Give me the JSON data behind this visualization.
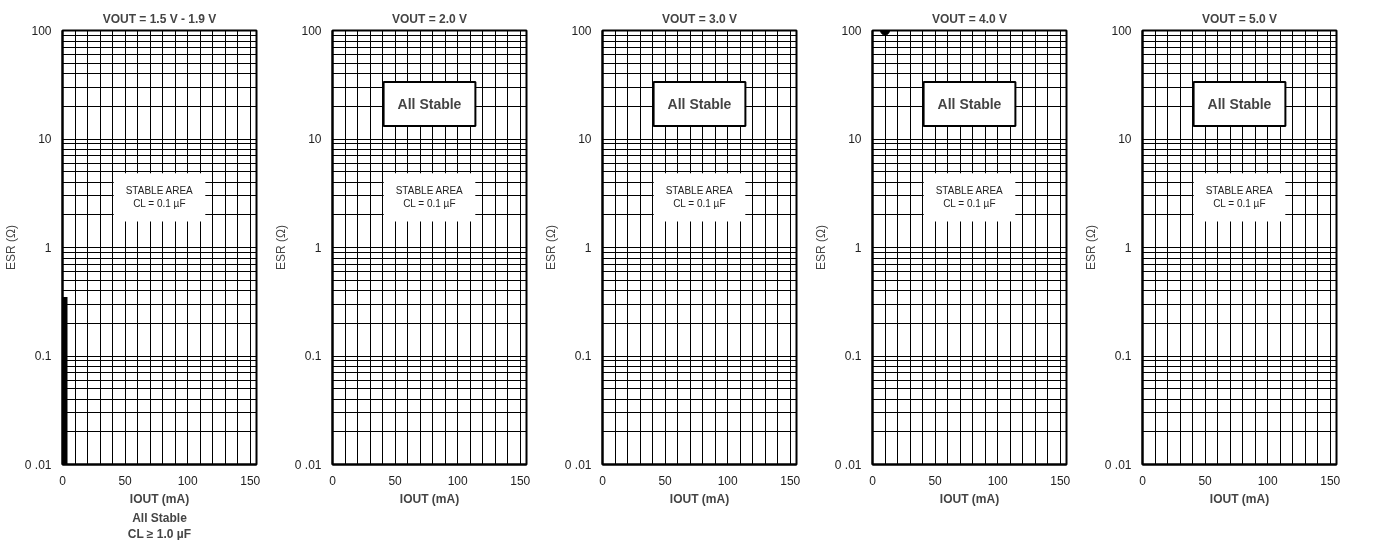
{
  "chart_data": [
    {
      "type": "area",
      "title": "VOUT = 1.5 V - 1.9 V",
      "xlabel": "IOUT (mA)",
      "ylabel": "ESR (Ω)",
      "log": "y",
      "grid": true,
      "xlim": [
        0,
        155
      ],
      "xticks": [
        0,
        {
          "value": 10,
          "label": null
        },
        {
          "value": 20,
          "label": null
        },
        {
          "value": 30,
          "label": null
        },
        {
          "value": 40,
          "label": null
        },
        50,
        {
          "value": 60,
          "label": null
        },
        {
          "value": 70,
          "label": null
        },
        {
          "value": 80,
          "label": null
        },
        {
          "value": 90,
          "label": null
        },
        100,
        {
          "value": 110,
          "label": null
        },
        {
          "value": 120,
          "label": null
        },
        {
          "value": 130,
          "label": null
        },
        {
          "value": 140,
          "label": null
        },
        150
      ],
      "ylim": [
        0.01,
        100
      ],
      "yticks": [
        {
          "value": 0.01,
          "label": "0 .01"
        },
        {
          "value": 0.02,
          "label": null
        },
        {
          "value": 0.03,
          "label": null
        },
        {
          "value": 0.04,
          "label": null
        },
        {
          "value": 0.05,
          "label": null
        },
        {
          "value": 0.06,
          "label": null
        },
        {
          "value": 0.07,
          "label": null
        },
        {
          "value": 0.08,
          "label": null
        },
        {
          "value": 0.09,
          "label": null
        },
        0.1,
        {
          "value": 0.2,
          "label": null
        },
        {
          "value": 0.3,
          "label": null
        },
        {
          "value": 0.4,
          "label": null
        },
        {
          "value": 0.5,
          "label": null
        },
        {
          "value": 0.6,
          "label": null
        },
        {
          "value": 0.7,
          "label": null
        },
        {
          "value": 0.8,
          "label": null
        },
        {
          "value": 0.9,
          "label": null
        },
        1,
        {
          "value": 2,
          "label": null
        },
        {
          "value": 3,
          "label": null
        },
        {
          "value": 4,
          "label": null
        },
        {
          "value": 5,
          "label": null
        },
        {
          "value": 6,
          "label": null
        },
        {
          "value": 7,
          "label": null
        },
        {
          "value": 8,
          "label": null
        },
        {
          "value": 9,
          "label": null
        },
        10,
        {
          "value": 20,
          "label": null
        },
        {
          "value": 30,
          "label": null
        },
        {
          "value": 40,
          "label": null
        },
        {
          "value": 50,
          "label": null
        },
        {
          "value": 60,
          "label": null
        },
        {
          "value": 70,
          "label": null
        },
        {
          "value": 80,
          "label": null
        },
        {
          "value": 90,
          "label": null
        },
        100
      ],
      "series": [
        {
          "color": "#000000",
          "x": [
            0,
            4
          ],
          "values": [
            0.35,
            0.35
          ]
        }
      ],
      "annotations": [
        "STABLE AREA\nCL = 0.1 µF",
        "All Stable\nCL ≥ 1.0 µF"
      ]
    },
    {
      "type": "line",
      "title": "VOUT = 2.0 V",
      "xlabel": "IOUT (mA)",
      "ylabel": "ESR (Ω)",
      "log": "y",
      "grid": true,
      "xlim": [
        0,
        155
      ],
      "xticks": [
        0,
        {
          "value": 10,
          "label": null
        },
        {
          "value": 20,
          "label": null
        },
        {
          "value": 30,
          "label": null
        },
        {
          "value": 40,
          "label": null
        },
        50,
        {
          "value": 60,
          "label": null
        },
        {
          "value": 70,
          "label": null
        },
        {
          "value": 80,
          "label": null
        },
        {
          "value": 90,
          "label": null
        },
        100,
        {
          "value": 110,
          "label": null
        },
        {
          "value": 120,
          "label": null
        },
        {
          "value": 130,
          "label": null
        },
        {
          "value": 140,
          "label": null
        },
        150
      ],
      "ylim": [
        0.01,
        100
      ],
      "yticks": [
        {
          "value": 0.01,
          "label": "0 .01"
        },
        {
          "value": 0.02,
          "label": null
        },
        {
          "value": 0.03,
          "label": null
        },
        {
          "value": 0.04,
          "label": null
        },
        {
          "value": 0.05,
          "label": null
        },
        {
          "value": 0.06,
          "label": null
        },
        {
          "value": 0.07,
          "label": null
        },
        {
          "value": 0.08,
          "label": null
        },
        {
          "value": 0.09,
          "label": null
        },
        0.1,
        {
          "value": 0.2,
          "label": null
        },
        {
          "value": 0.3,
          "label": null
        },
        {
          "value": 0.4,
          "label": null
        },
        {
          "value": 0.5,
          "label": null
        },
        {
          "value": 0.6,
          "label": null
        },
        {
          "value": 0.7,
          "label": null
        },
        {
          "value": 0.8,
          "label": null
        },
        {
          "value": 0.9,
          "label": null
        },
        1,
        {
          "value": 2,
          "label": null
        },
        {
          "value": 3,
          "label": null
        },
        {
          "value": 4,
          "label": null
        },
        {
          "value": 5,
          "label": null
        },
        {
          "value": 6,
          "label": null
        },
        {
          "value": 7,
          "label": null
        },
        {
          "value": 8,
          "label": null
        },
        {
          "value": 9,
          "label": null
        },
        10,
        {
          "value": 20,
          "label": null
        },
        {
          "value": 30,
          "label": null
        },
        {
          "value": 40,
          "label": null
        },
        {
          "value": 50,
          "label": null
        },
        {
          "value": 60,
          "label": null
        },
        {
          "value": 70,
          "label": null
        },
        {
          "value": 80,
          "label": null
        },
        {
          "value": 90,
          "label": null
        },
        100
      ],
      "annotations": [
        "STABLE AREA\nCL = 0.1 µF",
        "All Stable"
      ]
    },
    {
      "type": "line",
      "title": "VOUT = 3.0 V",
      "xlabel": "IOUT (mA)",
      "ylabel": "ESR (Ω)",
      "log": "y",
      "grid": true,
      "xlim": [
        0,
        155
      ],
      "xticks": [
        0,
        {
          "value": 10,
          "label": null
        },
        {
          "value": 20,
          "label": null
        },
        {
          "value": 30,
          "label": null
        },
        {
          "value": 40,
          "label": null
        },
        50,
        {
          "value": 60,
          "label": null
        },
        {
          "value": 70,
          "label": null
        },
        {
          "value": 80,
          "label": null
        },
        {
          "value": 90,
          "label": null
        },
        100,
        {
          "value": 110,
          "label": null
        },
        {
          "value": 120,
          "label": null
        },
        {
          "value": 130,
          "label": null
        },
        {
          "value": 140,
          "label": null
        },
        150
      ],
      "ylim": [
        0.01,
        100
      ],
      "yticks": [
        {
          "value": 0.01,
          "label": "0 .01"
        },
        {
          "value": 0.02,
          "label": null
        },
        {
          "value": 0.03,
          "label": null
        },
        {
          "value": 0.04,
          "label": null
        },
        {
          "value": 0.05,
          "label": null
        },
        {
          "value": 0.06,
          "label": null
        },
        {
          "value": 0.07,
          "label": null
        },
        {
          "value": 0.08,
          "label": null
        },
        {
          "value": 0.09,
          "label": null
        },
        0.1,
        {
          "value": 0.2,
          "label": null
        },
        {
          "value": 0.3,
          "label": null
        },
        {
          "value": 0.4,
          "label": null
        },
        {
          "value": 0.5,
          "label": null
        },
        {
          "value": 0.6,
          "label": null
        },
        {
          "value": 0.7,
          "label": null
        },
        {
          "value": 0.8,
          "label": null
        },
        {
          "value": 0.9,
          "label": null
        },
        1,
        {
          "value": 2,
          "label": null
        },
        {
          "value": 3,
          "label": null
        },
        {
          "value": 4,
          "label": null
        },
        {
          "value": 5,
          "label": null
        },
        {
          "value": 6,
          "label": null
        },
        {
          "value": 7,
          "label": null
        },
        {
          "value": 8,
          "label": null
        },
        {
          "value": 9,
          "label": null
        },
        10,
        {
          "value": 20,
          "label": null
        },
        {
          "value": 30,
          "label": null
        },
        {
          "value": 40,
          "label": null
        },
        {
          "value": 50,
          "label": null
        },
        {
          "value": 60,
          "label": null
        },
        {
          "value": 70,
          "label": null
        },
        {
          "value": 80,
          "label": null
        },
        {
          "value": 90,
          "label": null
        },
        100
      ],
      "annotations": [
        "STABLE AREA\nCL = 0.1 µF",
        "All Stable"
      ]
    },
    {
      "type": "scatter",
      "title": "VOUT = 4.0 V",
      "xlabel": "IOUT (mA)",
      "ylabel": "ESR (Ω)",
      "log": "y",
      "grid": true,
      "marker": "circle",
      "xlim": [
        0,
        155
      ],
      "xticks": [
        0,
        {
          "value": 10,
          "label": null
        },
        {
          "value": 20,
          "label": null
        },
        {
          "value": 30,
          "label": null
        },
        {
          "value": 40,
          "label": null
        },
        50,
        {
          "value": 60,
          "label": null
        },
        {
          "value": 70,
          "label": null
        },
        {
          "value": 80,
          "label": null
        },
        {
          "value": 90,
          "label": null
        },
        100,
        {
          "value": 110,
          "label": null
        },
        {
          "value": 120,
          "label": null
        },
        {
          "value": 130,
          "label": null
        },
        {
          "value": 140,
          "label": null
        },
        150
      ],
      "ylim": [
        0.01,
        100
      ],
      "yticks": [
        {
          "value": 0.01,
          "label": "0 .01"
        },
        {
          "value": 0.02,
          "label": null
        },
        {
          "value": 0.03,
          "label": null
        },
        {
          "value": 0.04,
          "label": null
        },
        {
          "value": 0.05,
          "label": null
        },
        {
          "value": 0.06,
          "label": null
        },
        {
          "value": 0.07,
          "label": null
        },
        {
          "value": 0.08,
          "label": null
        },
        {
          "value": 0.09,
          "label": null
        },
        0.1,
        {
          "value": 0.2,
          "label": null
        },
        {
          "value": 0.3,
          "label": null
        },
        {
          "value": 0.4,
          "label": null
        },
        {
          "value": 0.5,
          "label": null
        },
        {
          "value": 0.6,
          "label": null
        },
        {
          "value": 0.7,
          "label": null
        },
        {
          "value": 0.8,
          "label": null
        },
        {
          "value": 0.9,
          "label": null
        },
        1,
        {
          "value": 2,
          "label": null
        },
        {
          "value": 3,
          "label": null
        },
        {
          "value": 4,
          "label": null
        },
        {
          "value": 5,
          "label": null
        },
        {
          "value": 6,
          "label": null
        },
        {
          "value": 7,
          "label": null
        },
        {
          "value": 8,
          "label": null
        },
        {
          "value": 9,
          "label": null
        },
        10,
        {
          "value": 20,
          "label": null
        },
        {
          "value": 30,
          "label": null
        },
        {
          "value": 40,
          "label": null
        },
        {
          "value": 50,
          "label": null
        },
        {
          "value": 60,
          "label": null
        },
        {
          "value": 70,
          "label": null
        },
        {
          "value": 80,
          "label": null
        },
        {
          "value": 90,
          "label": null
        },
        100
      ],
      "series": [
        {
          "color": "#000000",
          "x": [
            10
          ],
          "values": [
            100
          ]
        }
      ],
      "annotations": [
        "STABLE AREA\nCL = 0.1 µF",
        "All Stable"
      ]
    },
    {
      "type": "line",
      "title": "VOUT = 5.0 V",
      "xlabel": "IOUT (mA)",
      "ylabel": "ESR (Ω)",
      "log": "y",
      "grid": true,
      "xlim": [
        0,
        155
      ],
      "xticks": [
        0,
        {
          "value": 10,
          "label": null
        },
        {
          "value": 20,
          "label": null
        },
        {
          "value": 30,
          "label": null
        },
        {
          "value": 40,
          "label": null
        },
        50,
        {
          "value": 60,
          "label": null
        },
        {
          "value": 70,
          "label": null
        },
        {
          "value": 80,
          "label": null
        },
        {
          "value": 90,
          "label": null
        },
        100,
        {
          "value": 110,
          "label": null
        },
        {
          "value": 120,
          "label": null
        },
        {
          "value": 130,
          "label": null
        },
        {
          "value": 140,
          "label": null
        },
        150
      ],
      "ylim": [
        0.01,
        100
      ],
      "yticks": [
        {
          "value": 0.01,
          "label": "0 .01"
        },
        {
          "value": 0.02,
          "label": null
        },
        {
          "value": 0.03,
          "label": null
        },
        {
          "value": 0.04,
          "label": null
        },
        {
          "value": 0.05,
          "label": null
        },
        {
          "value": 0.06,
          "label": null
        },
        {
          "value": 0.07,
          "label": null
        },
        {
          "value": 0.08,
          "label": null
        },
        {
          "value": 0.09,
          "label": null
        },
        0.1,
        {
          "value": 0.2,
          "label": null
        },
        {
          "value": 0.3,
          "label": null
        },
        {
          "value": 0.4,
          "label": null
        },
        {
          "value": 0.5,
          "label": null
        },
        {
          "value": 0.6,
          "label": null
        },
        {
          "value": 0.7,
          "label": null
        },
        {
          "value": 0.8,
          "label": null
        },
        {
          "value": 0.9,
          "label": null
        },
        1,
        {
          "value": 2,
          "label": null
        },
        {
          "value": 3,
          "label": null
        },
        {
          "value": 4,
          "label": null
        },
        {
          "value": 5,
          "label": null
        },
        {
          "value": 6,
          "label": null
        },
        {
          "value": 7,
          "label": null
        },
        {
          "value": 8,
          "label": null
        },
        {
          "value": 9,
          "label": null
        },
        10,
        {
          "value": 20,
          "label": null
        },
        {
          "value": 30,
          "label": null
        },
        {
          "value": 40,
          "label": null
        },
        {
          "value": 50,
          "label": null
        },
        {
          "value": 60,
          "label": null
        },
        {
          "value": 70,
          "label": null
        },
        {
          "value": 80,
          "label": null
        },
        {
          "value": 90,
          "label": null
        },
        100
      ],
      "annotations": [
        "STABLE AREA\nCL = 0.1 µF",
        "All Stable"
      ]
    }
  ]
}
